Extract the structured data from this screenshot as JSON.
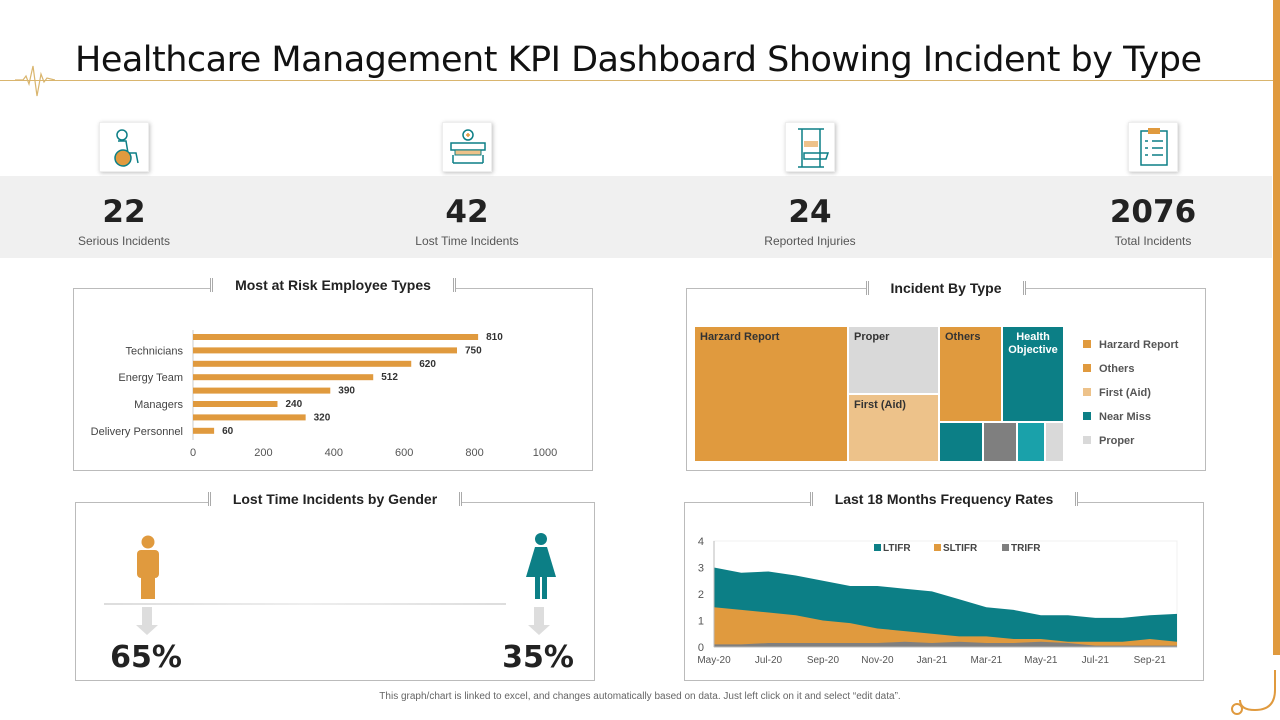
{
  "title": "Healthcare Management KPI Dashboard Showing Incident by Type",
  "kpis": [
    {
      "value": "22",
      "label": "Serious Incidents",
      "icon": "wheelchair-patient-icon"
    },
    {
      "value": "42",
      "label": "Lost Time Incidents",
      "icon": "hospital-bed-icon"
    },
    {
      "value": "24",
      "label": "Reported Injuries",
      "icon": "leg-traction-icon"
    },
    {
      "value": "2076",
      "label": "Total Incidents",
      "icon": "clipboard-checklist-icon"
    }
  ],
  "colors": {
    "orange": "#e09a3e",
    "teal": "#0c7f86",
    "light_orange": "#edc28a",
    "gray": "#7f7f7f",
    "light_gray": "#d9d9d9",
    "cyan": "#1aa1aa"
  },
  "chart_data": [
    {
      "type": "bar",
      "title": "Most at Risk Employee Types",
      "orientation": "horizontal",
      "categories": [
        "",
        "Technicians",
        "",
        "Energy Team",
        "",
        "Managers",
        "",
        "Delivery Personnel"
      ],
      "values": [
        810,
        750,
        620,
        512,
        390,
        240,
        320,
        60
      ],
      "xlim": [
        0,
        1000
      ],
      "xticks": [
        "0",
        "200",
        "400",
        "600",
        "800",
        "1000"
      ],
      "grid": false
    },
    {
      "type": "treemap",
      "title": "Incident By Type",
      "tiles": [
        "Harzard Report",
        "Proper",
        "First (Aid)",
        "Others",
        "Health Objective"
      ],
      "legend": [
        {
          "name": "Harzard Report",
          "color": "#e09a3e"
        },
        {
          "name": "Others",
          "color": "#e09a3e"
        },
        {
          "name": "First (Aid)",
          "color": "#edc28a"
        },
        {
          "name": "Near Miss",
          "color": "#0c7f86"
        },
        {
          "name": "Proper",
          "color": "#d9d9d9"
        }
      ],
      "legend_position": "right"
    },
    {
      "type": "area",
      "title": "Last 18 Months Frequency Rates",
      "x": [
        "May-20",
        "Jun-20",
        "Jul-20",
        "Aug-20",
        "Sep-20",
        "Oct-20",
        "Nov-20",
        "Dec-20",
        "Jan-21",
        "Feb-21",
        "Mar-21",
        "Apr-21",
        "May-21",
        "Jun-21",
        "Jul-21",
        "Aug-21",
        "Sep-21",
        "Oct-21"
      ],
      "xticks": [
        "May-20",
        "Jul-20",
        "Sep-20",
        "Nov-20",
        "Jan-21",
        "Mar-21",
        "May-21",
        "Jul-21",
        "Sep-21"
      ],
      "series": [
        {
          "name": "LTIFR",
          "color": "#0c7f86",
          "values": [
            3.0,
            2.8,
            2.85,
            2.7,
            2.5,
            2.3,
            2.3,
            2.2,
            2.1,
            1.8,
            1.5,
            1.4,
            1.2,
            1.2,
            1.1,
            1.1,
            1.2,
            1.25
          ]
        },
        {
          "name": "SLTIFR",
          "color": "#e09a3e",
          "values": [
            1.5,
            1.4,
            1.3,
            1.2,
            1.0,
            0.9,
            0.7,
            0.6,
            0.5,
            0.4,
            0.4,
            0.3,
            0.3,
            0.2,
            0.2,
            0.2,
            0.3,
            0.2
          ]
        },
        {
          "name": "TRIFR",
          "color": "#7f7f7f",
          "values": [
            0.1,
            0.1,
            0.15,
            0.15,
            0.15,
            0.15,
            0.15,
            0.2,
            0.15,
            0.2,
            0.15,
            0.15,
            0.2,
            0.15,
            0.05,
            0.05,
            0.05,
            0.05
          ]
        }
      ],
      "ylim": [
        0,
        4
      ],
      "yticks": [
        "0",
        "1",
        "2",
        "3",
        "4"
      ],
      "legend_position": "top"
    }
  ],
  "gender": {
    "title": "Lost Time Incidents by Gender",
    "male": {
      "percent": "65%",
      "value": 65
    },
    "female": {
      "percent": "35%",
      "value": 35
    }
  },
  "footer": "This graph/chart is linked to excel, and changes automatically based on data. Just left click on it and select “edit data”."
}
